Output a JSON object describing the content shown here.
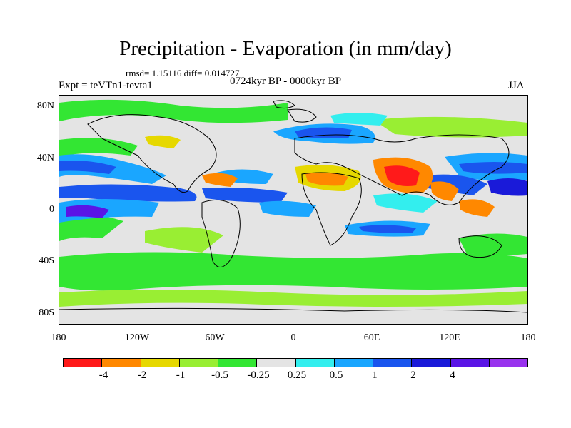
{
  "title": "Precipitation - Evaporation (in mm/day)",
  "stats": "rmsd= 1.15116 diff= 0.014727",
  "experiment": "Expt = teVTn1-tevta1",
  "period": "0724kyr BP - 0000kyr BP",
  "season": "JJA",
  "map": {
    "lat_range": [
      -90,
      90
    ],
    "lon_range": [
      -180,
      180
    ],
    "y_ticks": [
      "80N",
      "40N",
      "0",
      "40S",
      "80S"
    ],
    "x_ticks": [
      "180",
      "120W",
      "60W",
      "0",
      "60E",
      "120E",
      "180"
    ],
    "background_color": "#e4e4e4"
  },
  "colorbar": {
    "colors": [
      "#ff1a1a",
      "#ff8800",
      "#e6d800",
      "#99ee33",
      "#33e633",
      "#e4e4e4",
      "#33eeee",
      "#1aa6ff",
      "#1a55ee",
      "#1a1ad9",
      "#5a14e6",
      "#9933ee"
    ],
    "labels": [
      "-4",
      "-2",
      "-1",
      "-0.5",
      "-0.25",
      "0.25",
      "0.5",
      "1",
      "2",
      "4"
    ]
  }
}
